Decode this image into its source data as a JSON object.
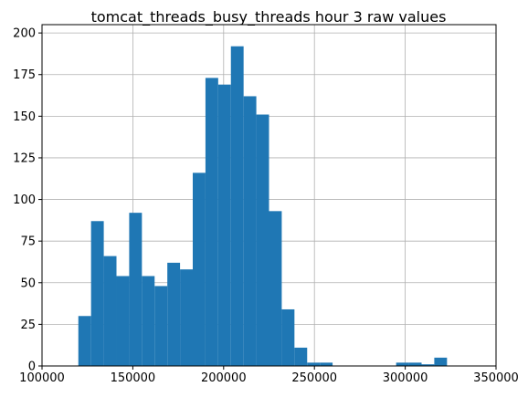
{
  "chart_data": {
    "type": "bar",
    "title": "tomcat_threads_busy_threads hour 3 raw values",
    "xlabel": "",
    "ylabel": "",
    "xlim": [
      100000,
      350000
    ],
    "ylim": [
      0,
      205
    ],
    "grid": true,
    "x_ticks": [
      100000,
      150000,
      200000,
      250000,
      300000,
      350000
    ],
    "y_ticks": [
      0,
      25,
      50,
      75,
      100,
      125,
      150,
      175,
      200
    ],
    "bar_color": "#1f77b4",
    "bins": [
      {
        "x0": 120000,
        "x1": 127000,
        "count": 30
      },
      {
        "x0": 127000,
        "x1": 134000,
        "count": 87
      },
      {
        "x0": 134000,
        "x1": 141000,
        "count": 66
      },
      {
        "x0": 141000,
        "x1": 148000,
        "count": 54
      },
      {
        "x0": 148000,
        "x1": 155000,
        "count": 92
      },
      {
        "x0": 155000,
        "x1": 162000,
        "count": 54
      },
      {
        "x0": 162000,
        "x1": 169000,
        "count": 48
      },
      {
        "x0": 169000,
        "x1": 176000,
        "count": 62
      },
      {
        "x0": 176000,
        "x1": 183000,
        "count": 58
      },
      {
        "x0": 183000,
        "x1": 190000,
        "count": 116
      },
      {
        "x0": 190000,
        "x1": 197000,
        "count": 173
      },
      {
        "x0": 197000,
        "x1": 204000,
        "count": 169
      },
      {
        "x0": 204000,
        "x1": 211000,
        "count": 192
      },
      {
        "x0": 211000,
        "x1": 218000,
        "count": 162
      },
      {
        "x0": 218000,
        "x1": 225000,
        "count": 151
      },
      {
        "x0": 225000,
        "x1": 232000,
        "count": 93
      },
      {
        "x0": 232000,
        "x1": 239000,
        "count": 34
      },
      {
        "x0": 239000,
        "x1": 246000,
        "count": 11
      },
      {
        "x0": 246000,
        "x1": 253000,
        "count": 2
      },
      {
        "x0": 253000,
        "x1": 260000,
        "count": 2
      },
      {
        "x0": 295000,
        "x1": 302000,
        "count": 2
      },
      {
        "x0": 302000,
        "x1": 309000,
        "count": 2
      },
      {
        "x0": 309000,
        "x1": 316000,
        "count": 1
      },
      {
        "x0": 316000,
        "x1": 323000,
        "count": 5
      }
    ]
  }
}
